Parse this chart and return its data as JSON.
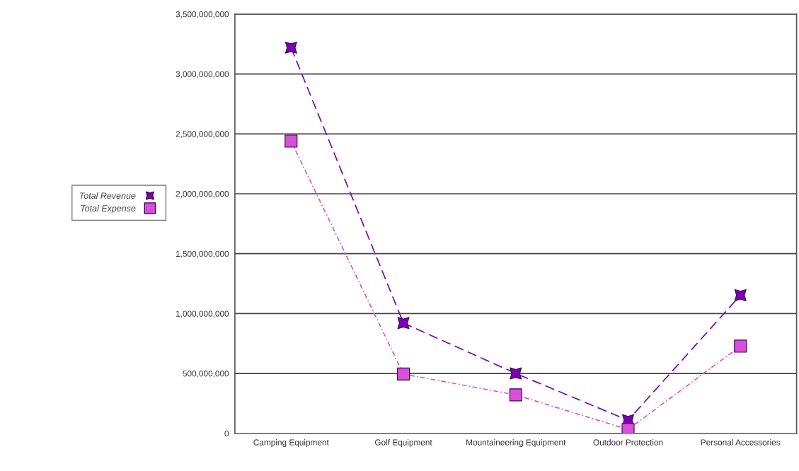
{
  "chart_data": {
    "type": "line",
    "categories": [
      "Camping Equipment",
      "Golf Equipment",
      "Mountaineering Equipment",
      "Outdoor Protection",
      "Personal Accessories"
    ],
    "series": [
      {
        "name": "Total Revenue",
        "color": "#7a00b0",
        "marker": "star",
        "line_style": "dashed",
        "values": [
          3220000000,
          921000000,
          500000000,
          109000000,
          1153000000
        ]
      },
      {
        "name": "Total Expense",
        "color": "#d94fd9",
        "marker": "square",
        "line_style": "dotted",
        "values": [
          2440000000,
          495000000,
          321000000,
          32000000,
          728000000
        ]
      }
    ],
    "ylim": [
      0,
      3500000000
    ],
    "yticks": [
      0,
      {
        "value": 500000000,
        "label": "500,000,000"
      },
      {
        "value": 1000000000,
        "label": "1,000,000,000"
      },
      {
        "value": 1500000000,
        "label": "1,500,000,000"
      },
      {
        "value": 2000000000,
        "label": "2,000,000,000"
      },
      {
        "value": 2500000000,
        "label": "2,500,000,000"
      },
      {
        "value": 3000000000,
        "label": "3,000,000,000"
      },
      {
        "value": 3500000000,
        "label": "3,500,000,000"
      }
    ],
    "grid": "y",
    "legend": "left"
  }
}
